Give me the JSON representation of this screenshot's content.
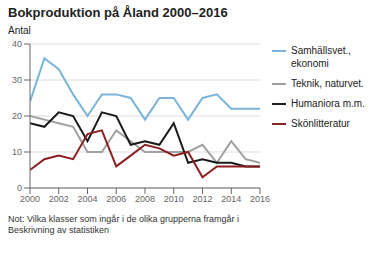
{
  "chart_data": {
    "type": "line",
    "title": "Bokproduktion på Åland 2000–2016",
    "ylabel": "Antal",
    "annotations": [
      "Not: Vilka klasser som ingår i de olika grupperna framgår i\nBeskrivning av statistiken"
    ],
    "x": [
      2000,
      2001,
      2002,
      2003,
      2004,
      2005,
      2006,
      2007,
      2008,
      2009,
      2010,
      2011,
      2012,
      2013,
      2014,
      2015,
      2016
    ],
    "series": [
      {
        "name": "Samhällsvet.,\nekonomi",
        "color": "#7ab4d8",
        "values": [
          24,
          36,
          33,
          26,
          20,
          26,
          26,
          25,
          19,
          25,
          25,
          19,
          25,
          26,
          22,
          22,
          22
        ]
      },
      {
        "name": "Teknik, naturvet.",
        "color": "#a0a0a0",
        "values": [
          20,
          19,
          18,
          17,
          10,
          10,
          16,
          13,
          10,
          10,
          10,
          10,
          12,
          7,
          13,
          8,
          7
        ]
      },
      {
        "name": "Humaniora m.m.",
        "color": "#1a1a1a",
        "values": [
          18,
          17,
          21,
          20,
          13,
          21,
          20,
          12,
          13,
          12,
          18,
          7,
          8,
          7,
          7,
          6,
          6
        ]
      },
      {
        "name": "Skönlitteratur",
        "color": "#8b2020",
        "values": [
          5,
          8,
          9,
          8,
          15,
          16,
          6,
          9,
          12,
          11,
          9,
          10,
          3,
          6,
          6,
          6,
          6
        ]
      }
    ],
    "xlim": [
      2000,
      2016
    ],
    "ylim": [
      0,
      40
    ],
    "xticks": [
      2000,
      2002,
      2004,
      2006,
      2008,
      2010,
      2012,
      2014,
      2016
    ],
    "yticks": [
      0,
      10,
      20,
      30,
      40
    ],
    "grid": true,
    "legend": "right"
  }
}
